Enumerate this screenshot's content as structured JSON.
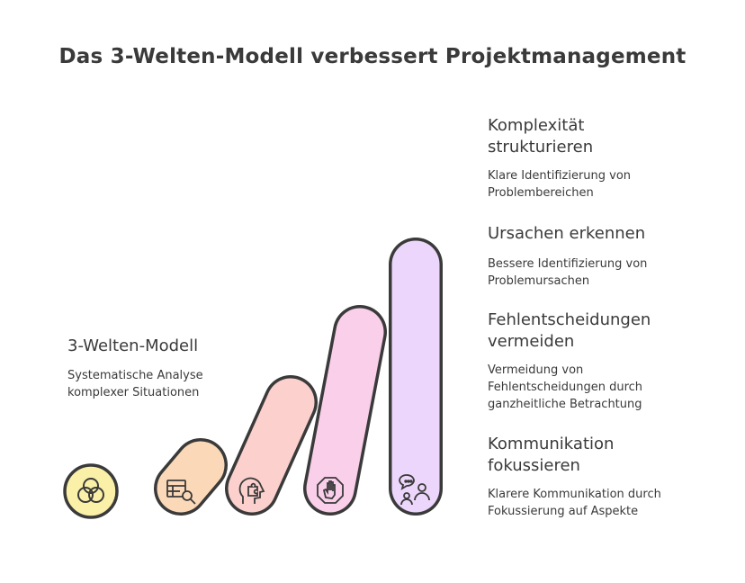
{
  "title": "Das 3-Welten-Modell verbessert Projektmanagement",
  "intro": {
    "heading": "3-Welten-Modell",
    "description": "Systematische Analyse\nkomplexer Situationen"
  },
  "steps": [
    {
      "heading": "Komplexität\nstrukturieren",
      "description": "Klare Identifizierung von\nProblembereichen",
      "icon": "table-search-icon",
      "color": "#fbd9b8"
    },
    {
      "heading": "Ursachen erkennen",
      "description": "Bessere Identifizierung von\nProblemursachen",
      "icon": "head-puzzle-icon",
      "color": "#fbd0cd"
    },
    {
      "heading": "Fehlentscheidungen\nvermeiden",
      "description": "Vermeidung von\nFehlentscheidungen durch\nganzheitliche Betrachtung",
      "icon": "stop-hand-icon",
      "color": "#f9cfe9"
    },
    {
      "heading": "Kommunikation\nfokussieren",
      "description": "Klarere Kommunikation durch\nFokussierung auf Aspekte",
      "icon": "chat-people-icon",
      "color": "#ecd6fb"
    }
  ],
  "colors": {
    "intro_circle": "#fbf0a8",
    "outline": "#3a3a3a"
  }
}
